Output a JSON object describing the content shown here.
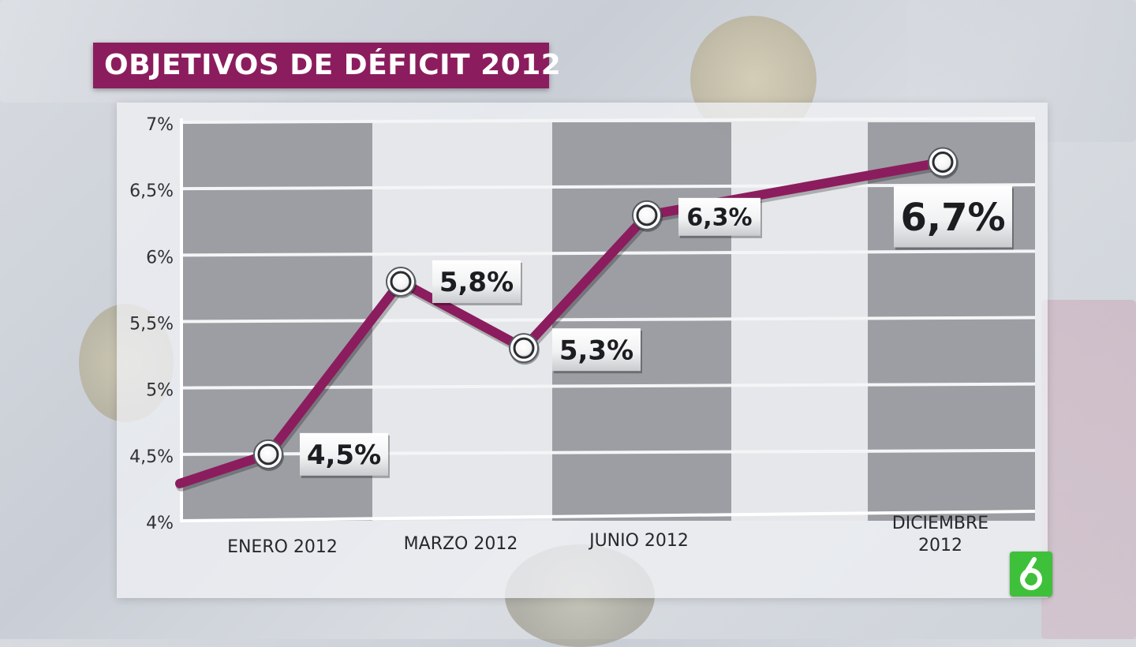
{
  "header": {
    "title": "OBJETIVOS DE DÉFICIT 2012"
  },
  "logo": {
    "icon": "la-sexta-logo-icon",
    "color": "#3fc03a"
  },
  "colors": {
    "line": "#8b1d5e",
    "title_bg": "#8b1d5e",
    "dark_band": "#8e9196",
    "light_band": "#e4e6e9"
  },
  "chart_data": {
    "type": "line",
    "title": "OBJETIVOS DE DÉFICIT 2012",
    "xlabel": "",
    "ylabel": "",
    "ylim": [
      4,
      7
    ],
    "y_ticks": [
      "4%",
      "4,5%",
      "5%",
      "5,5%",
      "6%",
      "6,5%",
      "7%"
    ],
    "y_tick_values": [
      4,
      4.5,
      5,
      5.5,
      6,
      6.5,
      7
    ],
    "x_labels": [
      {
        "label": "ENERO 2012",
        "month": 1
      },
      {
        "label": "MARZO 2012",
        "month": 3
      },
      {
        "label": "JUNIO 2012",
        "month": 6
      },
      {
        "label_line1": "DICIEMBRE",
        "label_line2": "2012",
        "month": 12
      }
    ],
    "series": [
      {
        "points": [
          {
            "month": 1,
            "value": 4.5,
            "label": "4,5%"
          },
          {
            "month": 3,
            "value": 5.8,
            "label": "5,8%"
          },
          {
            "month": 4,
            "value": 5.3,
            "label": "5,3%"
          },
          {
            "month": 6,
            "value": 6.3,
            "label": "6,3%"
          },
          {
            "month": 12,
            "value": 6.7,
            "label": "6,7%"
          }
        ]
      }
    ],
    "grid": true
  }
}
